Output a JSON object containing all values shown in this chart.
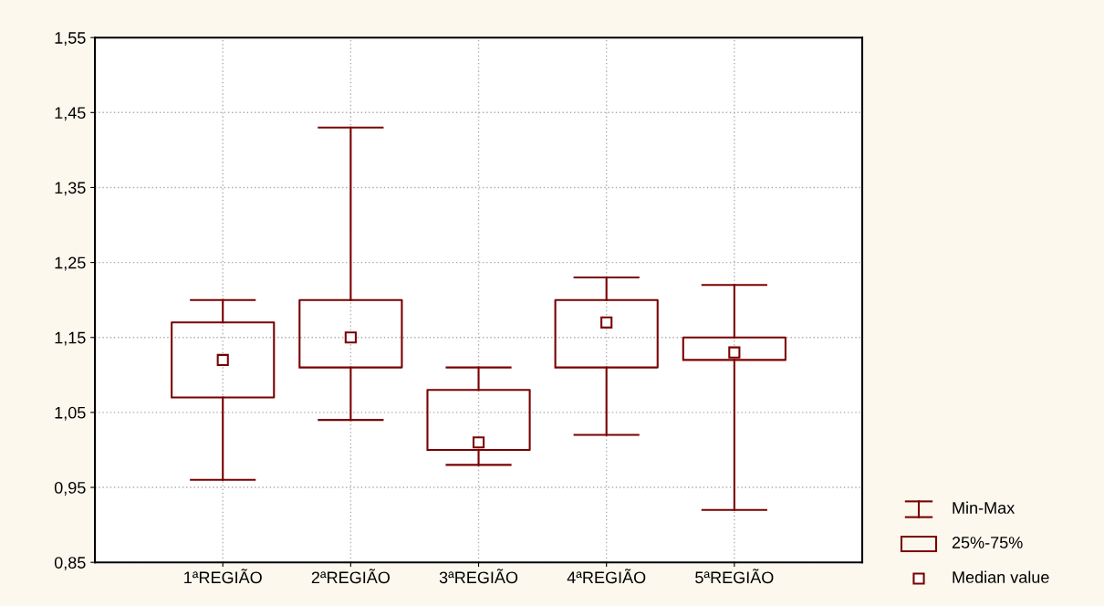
{
  "chart_data": {
    "type": "box",
    "categories": [
      "1ªREGIÃO",
      "2ªREGIÃO",
      "3ªREGIÃO",
      "4ªREGIÃO",
      "5ªREGIÃO"
    ],
    "boxes": [
      {
        "low": 0.96,
        "q1": 1.07,
        "median": 1.12,
        "q3": 1.17,
        "high": 1.2
      },
      {
        "low": 1.04,
        "q1": 1.11,
        "median": 1.15,
        "q3": 1.2,
        "high": 1.43
      },
      {
        "low": 0.98,
        "q1": 1.0,
        "median": 1.01,
        "q3": 1.08,
        "high": 1.11
      },
      {
        "low": 1.02,
        "q1": 1.11,
        "median": 1.17,
        "q3": 1.2,
        "high": 1.23
      },
      {
        "low": 0.92,
        "q1": 1.12,
        "median": 1.13,
        "q3": 1.15,
        "high": 1.22
      }
    ],
    "color": "#7a0000",
    "ylim": [
      0.85,
      1.55
    ],
    "yticks": [
      {
        "value": 0.85,
        "label": "0,85"
      },
      {
        "value": 0.95,
        "label": "0,95"
      },
      {
        "value": 1.05,
        "label": "1,05"
      },
      {
        "value": 1.15,
        "label": "1,15"
      },
      {
        "value": 1.25,
        "label": "1,25"
      },
      {
        "value": 1.35,
        "label": "1,35"
      },
      {
        "value": 1.45,
        "label": "1,45"
      },
      {
        "value": 1.55,
        "label": "1,55"
      }
    ],
    "grid": true,
    "marker": "square",
    "annotations": [
      "Min-Max",
      "25%-75%",
      "Median value"
    ]
  }
}
